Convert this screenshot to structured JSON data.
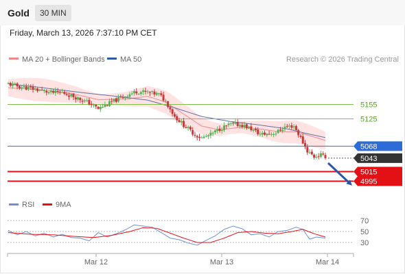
{
  "header": {
    "instrument": "Gold",
    "timeframe": "30 MIN",
    "timestamp": "Friday, March 13, 2026 7:37:10 PM CET"
  },
  "colors": {
    "bull": "#55b555",
    "bear": "#c8383b",
    "bollinger_fill": "#ffdede",
    "ma20": "#f08a8a",
    "ma50": "#5a72a8",
    "pivot": "#2d6bd8",
    "resistance": "#7cc04a",
    "support": "#e31016",
    "last_price": "#333333",
    "rsi": "#6f8fd8",
    "rsi_ma": "#e31016"
  },
  "chart_data": [
    {
      "type": "candlestick",
      "legend": [
        {
          "label": "MA 20 + Bollinger Bands",
          "color": "#f08a8a"
        },
        {
          "label": "MA 50",
          "color": "#2d5aa0"
        }
      ],
      "credit": "Research © 2026 Trading Central",
      "x_ticks": [
        "Mar 12",
        "Mar 13",
        "Mar 14"
      ],
      "ylim": [
        4970,
        5230
      ],
      "levels": [
        {
          "label": "5155",
          "value": 5155,
          "role": "resistance",
          "labelled": "text"
        },
        {
          "label": "5125",
          "value": 5125,
          "role": "resistance",
          "labelled": "text"
        },
        {
          "label": "5068",
          "value": 5068,
          "role": "pivot",
          "labelled": "box"
        },
        {
          "label": "5043",
          "value": 5043,
          "role": "last",
          "labelled": "box"
        },
        {
          "label": "5015",
          "value": 5015,
          "role": "support",
          "labelled": "box"
        },
        {
          "label": "4995",
          "value": 4995,
          "role": "support",
          "labelled": "box"
        }
      ],
      "anchors": [
        [
          0,
          5198
        ],
        [
          5,
          5192
        ],
        [
          12,
          5187
        ],
        [
          18,
          5180
        ],
        [
          24,
          5180
        ],
        [
          30,
          5170
        ],
        [
          36,
          5158
        ],
        [
          40,
          5146
        ],
        [
          46,
          5160
        ],
        [
          52,
          5173
        ],
        [
          57,
          5182
        ],
        [
          62,
          5180
        ],
        [
          67,
          5176
        ],
        [
          70,
          5162
        ],
        [
          74,
          5130
        ],
        [
          78,
          5112
        ],
        [
          83,
          5092
        ],
        [
          86,
          5085
        ],
        [
          90,
          5092
        ],
        [
          94,
          5104
        ],
        [
          99,
          5114
        ],
        [
          104,
          5112
        ],
        [
          108,
          5104
        ],
        [
          112,
          5093
        ],
        [
          116,
          5094
        ],
        [
          119,
          5096
        ],
        [
          123,
          5108
        ],
        [
          127,
          5110
        ],
        [
          130,
          5085
        ],
        [
          133,
          5058
        ],
        [
          136,
          5046
        ],
        [
          139,
          5050
        ],
        [
          141,
          5043
        ]
      ],
      "ma20_anchors": [
        [
          0,
          5190
        ],
        [
          16,
          5185
        ],
        [
          30,
          5176
        ],
        [
          40,
          5165
        ],
        [
          52,
          5166
        ],
        [
          62,
          5172
        ],
        [
          70,
          5160
        ],
        [
          78,
          5135
        ],
        [
          86,
          5110
        ],
        [
          94,
          5102
        ],
        [
          104,
          5108
        ],
        [
          112,
          5104
        ],
        [
          120,
          5098
        ],
        [
          128,
          5098
        ],
        [
          134,
          5090
        ],
        [
          141,
          5080
        ]
      ],
      "ma50_anchors": [
        [
          0,
          5198
        ],
        [
          10,
          5193
        ],
        [
          22,
          5186
        ],
        [
          36,
          5178
        ],
        [
          48,
          5172
        ],
        [
          62,
          5164
        ],
        [
          74,
          5148
        ],
        [
          86,
          5130
        ],
        [
          98,
          5120
        ],
        [
          112,
          5112
        ],
        [
          124,
          5104
        ],
        [
          134,
          5093
        ],
        [
          141,
          5086
        ]
      ],
      "bb_width": 18
    },
    {
      "type": "line",
      "legend": [
        {
          "label": "RSI",
          "color": "#6f8fd8"
        },
        {
          "label": "9MA",
          "color": "#e31016"
        }
      ],
      "y_ticks": [
        70,
        50,
        30
      ],
      "ylim": [
        20,
        80
      ],
      "series": [
        {
          "name": "RSI",
          "anchors": [
            [
              0,
              52
            ],
            [
              4,
              44
            ],
            [
              8,
              50
            ],
            [
              12,
              42
            ],
            [
              16,
              47
            ],
            [
              20,
              40
            ],
            [
              24,
              45
            ],
            [
              28,
              39
            ],
            [
              32,
              38
            ],
            [
              36,
              33
            ],
            [
              40,
              48
            ],
            [
              44,
              40
            ],
            [
              48,
              46
            ],
            [
              52,
              53
            ],
            [
              56,
              62
            ],
            [
              60,
              60
            ],
            [
              64,
              58
            ],
            [
              68,
              48
            ],
            [
              72,
              38
            ],
            [
              76,
              35
            ],
            [
              80,
              29
            ],
            [
              84,
              25
            ],
            [
              88,
              34
            ],
            [
              92,
              42
            ],
            [
              96,
              54
            ],
            [
              100,
              60
            ],
            [
              104,
              55
            ],
            [
              108,
              44
            ],
            [
              112,
              46
            ],
            [
              116,
              40
            ],
            [
              120,
              50
            ],
            [
              124,
              52
            ],
            [
              128,
              58
            ],
            [
              131,
              54
            ],
            [
              134,
              36
            ],
            [
              137,
              40
            ],
            [
              141,
              38
            ]
          ]
        },
        {
          "name": "9MA",
          "anchors": [
            [
              0,
              48
            ],
            [
              10,
              45
            ],
            [
              20,
              44
            ],
            [
              30,
              41
            ],
            [
              38,
              39
            ],
            [
              46,
              43
            ],
            [
              54,
              50
            ],
            [
              60,
              57
            ],
            [
              66,
              56
            ],
            [
              72,
              47
            ],
            [
              78,
              38
            ],
            [
              84,
              30
            ],
            [
              90,
              30
            ],
            [
              96,
              38
            ],
            [
              102,
              48
            ],
            [
              108,
              50
            ],
            [
              114,
              47
            ],
            [
              120,
              46
            ],
            [
              126,
              50
            ],
            [
              131,
              54
            ],
            [
              136,
              46
            ],
            [
              141,
              40
            ]
          ]
        }
      ]
    }
  ]
}
